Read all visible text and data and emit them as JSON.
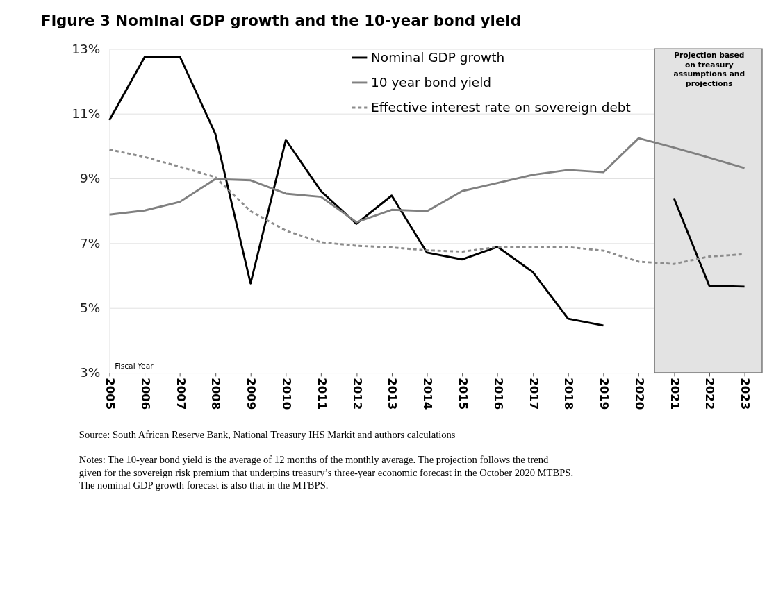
{
  "chart_data": {
    "type": "line",
    "title": "Figure 3 Nominal GDP growth and the 10-year bond yield",
    "xlabel": "Fiscal Year",
    "categories": [
      "2005",
      "2006",
      "2007",
      "2008",
      "2009",
      "2010",
      "2011",
      "2012",
      "2013",
      "2014",
      "2015",
      "2016",
      "2017",
      "2018",
      "2019",
      "2020",
      "2021",
      "2022",
      "2023"
    ],
    "series": [
      {
        "name": "Nominal GDP growth",
        "color": "#000000",
        "line_style": "solid",
        "values": [
          10.8,
          12.75,
          12.75,
          10.38,
          5.76,
          10.19,
          8.6,
          7.6,
          8.47,
          6.71,
          6.5,
          6.89,
          6.11,
          4.67,
          4.46,
          null,
          8.39,
          5.69,
          5.66
        ]
      },
      {
        "name": "10 year bond yield",
        "color": "#808080",
        "line_style": "solid",
        "values": [
          7.88,
          8.01,
          8.28,
          8.98,
          8.94,
          8.53,
          8.43,
          7.65,
          8.03,
          7.99,
          8.61,
          8.86,
          9.11,
          9.26,
          9.19,
          10.24,
          9.95,
          9.64,
          9.32
        ]
      },
      {
        "name": "Effective interest rate on sovereign debt",
        "color": "#8c8c8c",
        "line_style": "dashed",
        "values": [
          9.89,
          9.66,
          9.36,
          9.04,
          7.99,
          7.39,
          7.03,
          6.92,
          6.87,
          6.78,
          6.74,
          6.88,
          6.88,
          6.88,
          6.77,
          6.43,
          6.36,
          6.59,
          6.66
        ]
      }
    ],
    "ylim": [
      3,
      13
    ],
    "yticks": [
      {
        "value": 3,
        "label": "3%"
      },
      {
        "value": 5,
        "label": "5%"
      },
      {
        "value": 7,
        "label": "7%"
      },
      {
        "value": 9,
        "label": "9%"
      },
      {
        "value": 11,
        "label": "11%"
      },
      {
        "value": 13,
        "label": "13%"
      }
    ],
    "grid": "y",
    "legend": "top",
    "marker": "none",
    "bands": [
      {
        "axis": "x",
        "from": "2021",
        "to": "2023",
        "label": "Projection based on treasury assumptions and projections",
        "color": "#e3e3e3"
      }
    ],
    "annotations": [
      "Source: South African Reserve Bank, National Treasury IHS Markit and authors calculations",
      "Notes: The 10-year bond yield is the average of 12 months of the monthly average. The projection follows the trend given for the sovereign risk premium that underpins treasury’s three-year economic forecast in the October 2020 MTBPS. The nominal GDP growth forecast is also that in the MTBPS."
    ]
  }
}
